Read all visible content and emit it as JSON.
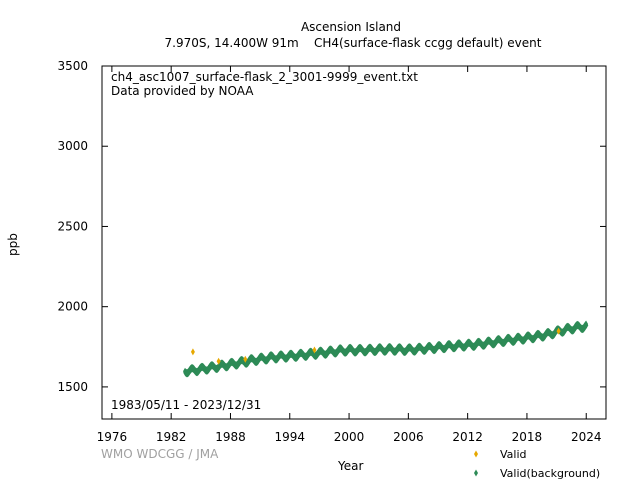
{
  "header": {
    "title": "Ascension Island",
    "subtitle": "7.970S, 14.400W 91m    CH4(surface-flask ccgg default) event"
  },
  "annotations": {
    "filename": "ch4_asc1007_surface-flask_2_3001-9999_event.txt",
    "provider": "Data provided by NOAA",
    "date_range": "1983/05/11 - 2023/12/31"
  },
  "credit": "WMO WDCGG / JMA",
  "chart_data": {
    "type": "scatter",
    "xlabel": "Year",
    "ylabel": "ppb",
    "xlim": [
      1975,
      2026
    ],
    "ylim": [
      1300,
      3500
    ],
    "xticks": [
      1976,
      1982,
      1988,
      1994,
      2000,
      2006,
      2012,
      2018,
      2024
    ],
    "yticks": [
      1500,
      2000,
      2500,
      3000,
      3500
    ],
    "legend_position": "bottom-right",
    "series": [
      {
        "name": "Valid",
        "color": "#e6a800",
        "marker": "diamond",
        "points": [
          [
            1984.2,
            1718
          ],
          [
            1986.8,
            1660
          ],
          [
            1989.5,
            1672
          ],
          [
            1996.5,
            1730
          ],
          [
            2021.2,
            1848
          ]
        ]
      },
      {
        "name": "Valid(background)",
        "color": "#2e8b57",
        "marker": "diamond",
        "trend": [
          [
            1983.4,
            1602
          ],
          [
            1984,
            1606
          ],
          [
            1985,
            1614
          ],
          [
            1986,
            1624
          ],
          [
            1987,
            1634
          ],
          [
            1988,
            1645
          ],
          [
            1989,
            1656
          ],
          [
            1990,
            1668
          ],
          [
            1991,
            1678
          ],
          [
            1992,
            1686
          ],
          [
            1993,
            1692
          ],
          [
            1994,
            1696
          ],
          [
            1995,
            1702
          ],
          [
            1996,
            1708
          ],
          [
            1997,
            1715
          ],
          [
            1998,
            1722
          ],
          [
            1999,
            1730
          ],
          [
            2000,
            1733
          ],
          [
            2001,
            1733
          ],
          [
            2002,
            1734
          ],
          [
            2003,
            1737
          ],
          [
            2004,
            1738
          ],
          [
            2005,
            1737
          ],
          [
            2006,
            1736
          ],
          [
            2007,
            1740
          ],
          [
            2008,
            1745
          ],
          [
            2009,
            1750
          ],
          [
            2010,
            1756
          ],
          [
            2011,
            1761
          ],
          [
            2012,
            1765
          ],
          [
            2013,
            1770
          ],
          [
            2014,
            1778
          ],
          [
            2015,
            1787
          ],
          [
            2016,
            1795
          ],
          [
            2017,
            1802
          ],
          [
            2018,
            1810
          ],
          [
            2019,
            1819
          ],
          [
            2020,
            1830
          ],
          [
            2021,
            1847
          ],
          [
            2022,
            1863
          ],
          [
            2023,
            1875
          ],
          [
            2024,
            1882
          ]
        ],
        "seasonal_amplitude": 14,
        "samples_per_year": 24
      }
    ]
  }
}
